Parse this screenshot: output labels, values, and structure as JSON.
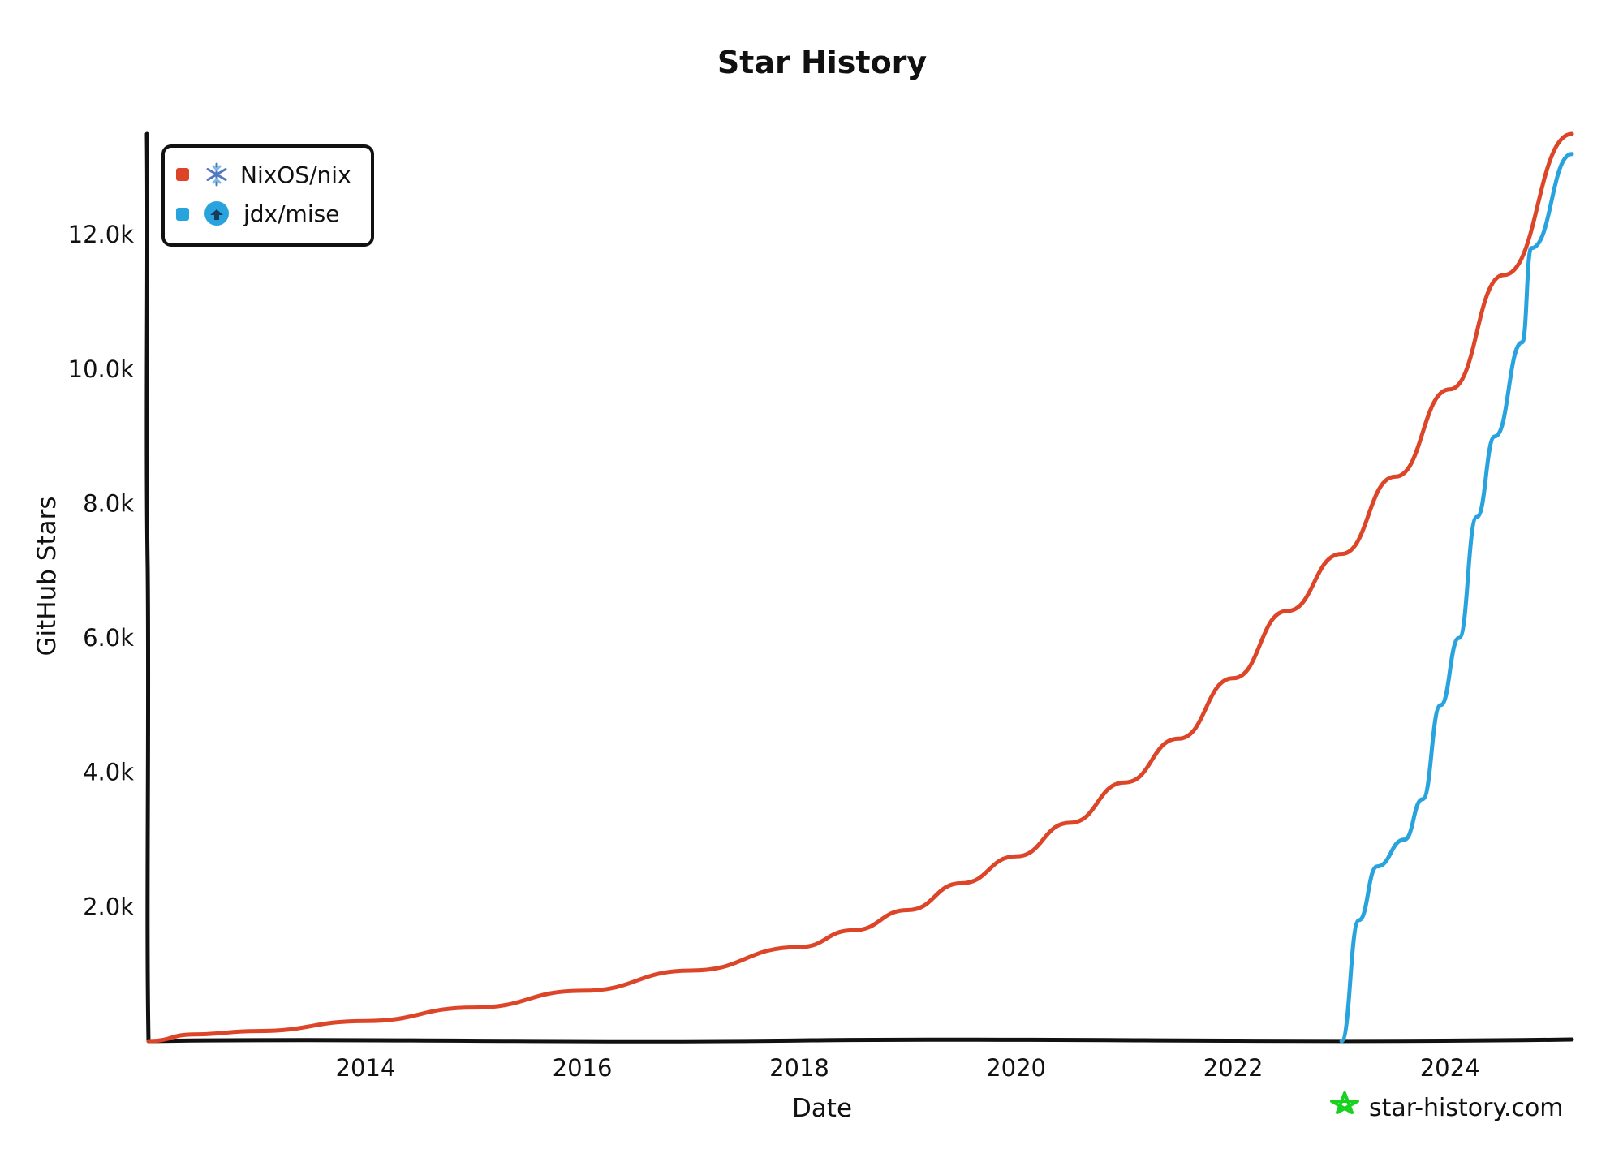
{
  "chart_data": {
    "type": "line",
    "title": "Star History",
    "xlabel": "Date",
    "ylabel": "GitHub Stars",
    "xlim": [
      "2012-01-01",
      "2025-02-15"
    ],
    "ylim": [
      0,
      13500
    ],
    "x_ticks": [
      {
        "date": "2014-01-01",
        "label": "2014"
      },
      {
        "date": "2016-01-01",
        "label": "2016"
      },
      {
        "date": "2018-01-01",
        "label": "2018"
      },
      {
        "date": "2020-01-01",
        "label": "2020"
      },
      {
        "date": "2022-01-01",
        "label": "2022"
      },
      {
        "date": "2024-01-01",
        "label": "2024"
      }
    ],
    "y_ticks": [
      {
        "value": 2000,
        "label": "2.0k"
      },
      {
        "value": 4000,
        "label": "4.0k"
      },
      {
        "value": 6000,
        "label": "6.0k"
      },
      {
        "value": 8000,
        "label": "8.0k"
      },
      {
        "value": 10000,
        "label": "10.0k"
      },
      {
        "value": 12000,
        "label": "12.0k"
      }
    ],
    "grid": false,
    "legend_position": "top-left",
    "series": [
      {
        "name": "NixOS/nix",
        "icon": "snowflake-icon",
        "color": "#dd4528",
        "points": [
          [
            "2012-01-01",
            0
          ],
          [
            "2012-06-01",
            100
          ],
          [
            "2013-01-01",
            150
          ],
          [
            "2014-01-01",
            300
          ],
          [
            "2015-01-01",
            500
          ],
          [
            "2016-01-01",
            750
          ],
          [
            "2017-01-01",
            1050
          ],
          [
            "2018-01-01",
            1400
          ],
          [
            "2018-07-01",
            1650
          ],
          [
            "2019-01-01",
            1950
          ],
          [
            "2019-07-01",
            2350
          ],
          [
            "2020-01-01",
            2750
          ],
          [
            "2020-07-01",
            3250
          ],
          [
            "2021-01-01",
            3850
          ],
          [
            "2021-07-01",
            4500
          ],
          [
            "2022-01-01",
            5400
          ],
          [
            "2022-07-01",
            6400
          ],
          [
            "2023-01-01",
            7250
          ],
          [
            "2023-07-01",
            8400
          ],
          [
            "2024-01-01",
            9700
          ],
          [
            "2024-07-01",
            11400
          ],
          [
            "2025-02-15",
            13500
          ]
        ]
      },
      {
        "name": "jdx/mise",
        "icon": "mise-logo-icon",
        "color": "#28a3dd",
        "points": [
          [
            "2023-01-01",
            0
          ],
          [
            "2023-03-01",
            1800
          ],
          [
            "2023-05-01",
            2600
          ],
          [
            "2023-08-01",
            3000
          ],
          [
            "2023-10-01",
            3600
          ],
          [
            "2023-12-01",
            5000
          ],
          [
            "2024-02-01",
            6000
          ],
          [
            "2024-04-01",
            7800
          ],
          [
            "2024-06-01",
            9000
          ],
          [
            "2024-09-01",
            10400
          ],
          [
            "2024-10-01",
            11800
          ],
          [
            "2025-02-15",
            13200
          ]
        ]
      }
    ]
  },
  "watermark": "star-history.com"
}
